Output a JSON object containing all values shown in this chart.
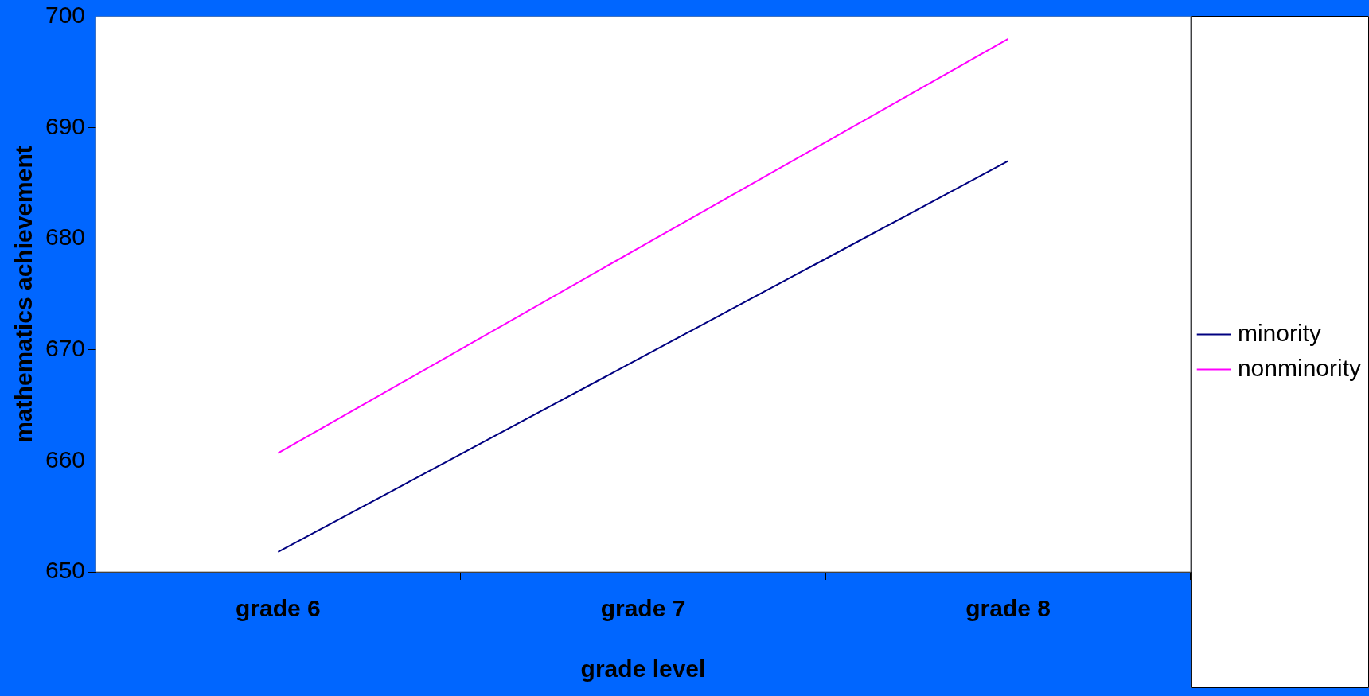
{
  "chart_data": {
    "type": "line",
    "xlabel": "grade level",
    "ylabel": "mathematics achievement",
    "categories": [
      "grade 6",
      "grade 7",
      "grade 8"
    ],
    "series": [
      {
        "name": "minority",
        "color": "#000080",
        "values": [
          651.8,
          669.4,
          687.0
        ]
      },
      {
        "name": "nonminority",
        "color": "#ff00ff",
        "values": [
          660.7,
          679.4,
          698.0
        ]
      }
    ],
    "ylim": [
      650,
      700
    ],
    "yticks": [
      650,
      660,
      670,
      680,
      690,
      700
    ],
    "grid": false,
    "legend": "right",
    "marker": "none",
    "line_style": "solid"
  }
}
